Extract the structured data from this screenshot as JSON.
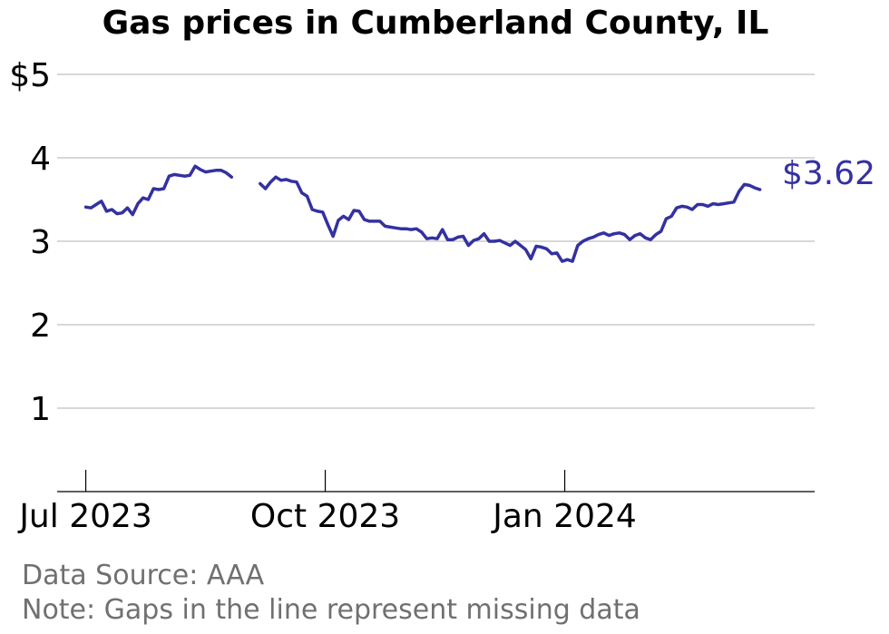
{
  "chart_data": {
    "type": "line",
    "title": "Gas prices in Cumberland County, IL",
    "xlabel": "",
    "ylabel": "",
    "ylim": [
      0,
      5
    ],
    "xlim": [
      "2023-06-20",
      "2024-04-06"
    ],
    "yticks": [
      {
        "value": 1,
        "label": "1"
      },
      {
        "value": 2,
        "label": "2"
      },
      {
        "value": 3,
        "label": "3"
      },
      {
        "value": 4,
        "label": "4"
      },
      {
        "value": 5,
        "label": "$5"
      }
    ],
    "xticks": [
      {
        "date": "2023-07-01",
        "label": "Jul 2023"
      },
      {
        "date": "2023-10-01",
        "label": "Oct 2023"
      },
      {
        "date": "2024-01-01",
        "label": "Jan 2024"
      }
    ],
    "grid": true,
    "color": "#3431a0",
    "end_label": "$3.62",
    "series": [
      {
        "segments": [
          [
            [
              "2023-07-01",
              3.41
            ],
            [
              "2023-07-03",
              3.4
            ],
            [
              "2023-07-05",
              3.44
            ],
            [
              "2023-07-07",
              3.48
            ],
            [
              "2023-07-09",
              3.36
            ],
            [
              "2023-07-11",
              3.38
            ],
            [
              "2023-07-13",
              3.33
            ],
            [
              "2023-07-15",
              3.34
            ],
            [
              "2023-07-17",
              3.4
            ],
            [
              "2023-07-19",
              3.32
            ],
            [
              "2023-07-21",
              3.45
            ],
            [
              "2023-07-23",
              3.52
            ],
            [
              "2023-07-25",
              3.5
            ],
            [
              "2023-07-27",
              3.63
            ],
            [
              "2023-07-29",
              3.62
            ],
            [
              "2023-07-31",
              3.63
            ],
            [
              "2023-08-02",
              3.78
            ],
            [
              "2023-08-04",
              3.8
            ],
            [
              "2023-08-06",
              3.79
            ],
            [
              "2023-08-08",
              3.78
            ],
            [
              "2023-08-10",
              3.79
            ],
            [
              "2023-08-12",
              3.9
            ],
            [
              "2023-08-14",
              3.86
            ],
            [
              "2023-08-16",
              3.83
            ],
            [
              "2023-08-18",
              3.84
            ],
            [
              "2023-08-20",
              3.85
            ],
            [
              "2023-08-22",
              3.85
            ],
            [
              "2023-08-24",
              3.82
            ],
            [
              "2023-08-26",
              3.77
            ]
          ],
          [
            [
              "2023-09-06",
              3.69
            ],
            [
              "2023-09-08",
              3.63
            ],
            [
              "2023-09-10",
              3.71
            ],
            [
              "2023-09-12",
              3.77
            ],
            [
              "2023-09-14",
              3.73
            ],
            [
              "2023-09-16",
              3.74
            ],
            [
              "2023-09-18",
              3.72
            ],
            [
              "2023-09-20",
              3.71
            ],
            [
              "2023-09-22",
              3.58
            ],
            [
              "2023-09-24",
              3.54
            ],
            [
              "2023-09-26",
              3.38
            ],
            [
              "2023-09-28",
              3.36
            ],
            [
              "2023-09-30",
              3.35
            ],
            [
              "2023-10-02",
              3.2
            ],
            [
              "2023-10-04",
              3.06
            ],
            [
              "2023-10-06",
              3.25
            ],
            [
              "2023-10-08",
              3.3
            ],
            [
              "2023-10-10",
              3.26
            ],
            [
              "2023-10-12",
              3.37
            ],
            [
              "2023-10-14",
              3.36
            ],
            [
              "2023-10-16",
              3.26
            ],
            [
              "2023-10-18",
              3.24
            ],
            [
              "2023-10-20",
              3.24
            ],
            [
              "2023-10-22",
              3.24
            ],
            [
              "2023-10-24",
              3.18
            ],
            [
              "2023-10-26",
              3.17
            ],
            [
              "2023-10-28",
              3.16
            ],
            [
              "2023-10-30",
              3.15
            ],
            [
              "2023-11-01",
              3.15
            ],
            [
              "2023-11-03",
              3.14
            ],
            [
              "2023-11-05",
              3.15
            ],
            [
              "2023-11-07",
              3.11
            ],
            [
              "2023-11-09",
              3.03
            ],
            [
              "2023-11-11",
              3.04
            ],
            [
              "2023-11-13",
              3.03
            ],
            [
              "2023-11-15",
              3.14
            ],
            [
              "2023-11-17",
              3.02
            ],
            [
              "2023-11-19",
              3.02
            ],
            [
              "2023-11-21",
              3.05
            ],
            [
              "2023-11-23",
              3.06
            ],
            [
              "2023-11-25",
              2.95
            ],
            [
              "2023-11-27",
              3.01
            ],
            [
              "2023-11-29",
              3.03
            ],
            [
              "2023-12-01",
              3.09
            ],
            [
              "2023-12-03",
              3.0
            ],
            [
              "2023-12-05",
              3.0
            ],
            [
              "2023-12-07",
              3.01
            ],
            [
              "2023-12-09",
              2.98
            ],
            [
              "2023-12-11",
              2.95
            ],
            [
              "2023-12-13",
              3.0
            ],
            [
              "2023-12-15",
              2.95
            ],
            [
              "2023-12-17",
              2.9
            ],
            [
              "2023-12-19",
              2.79
            ],
            [
              "2023-12-21",
              2.94
            ],
            [
              "2023-12-23",
              2.93
            ],
            [
              "2023-12-25",
              2.91
            ],
            [
              "2023-12-27",
              2.85
            ],
            [
              "2023-12-29",
              2.86
            ],
            [
              "2023-12-31",
              2.76
            ],
            [
              "2024-01-02",
              2.78
            ],
            [
              "2024-01-04",
              2.76
            ],
            [
              "2024-01-06",
              2.95
            ],
            [
              "2024-01-08",
              3.0
            ],
            [
              "2024-01-10",
              3.03
            ],
            [
              "2024-01-12",
              3.05
            ],
            [
              "2024-01-14",
              3.08
            ],
            [
              "2024-01-16",
              3.1
            ],
            [
              "2024-01-18",
              3.07
            ],
            [
              "2024-01-20",
              3.09
            ],
            [
              "2024-01-22",
              3.1
            ],
            [
              "2024-01-24",
              3.08
            ],
            [
              "2024-01-26",
              3.02
            ],
            [
              "2024-01-28",
              3.07
            ],
            [
              "2024-01-30",
              3.09
            ],
            [
              "2024-02-01",
              3.04
            ],
            [
              "2024-02-03",
              3.02
            ],
            [
              "2024-02-05",
              3.08
            ],
            [
              "2024-02-07",
              3.12
            ],
            [
              "2024-02-09",
              3.27
            ],
            [
              "2024-02-11",
              3.3
            ],
            [
              "2024-02-13",
              3.4
            ],
            [
              "2024-02-15",
              3.42
            ],
            [
              "2024-02-17",
              3.41
            ],
            [
              "2024-02-19",
              3.38
            ],
            [
              "2024-02-21",
              3.44
            ],
            [
              "2024-02-23",
              3.44
            ],
            [
              "2024-02-25",
              3.42
            ],
            [
              "2024-02-27",
              3.45
            ],
            [
              "2024-02-29",
              3.44
            ],
            [
              "2024-03-02",
              3.45
            ],
            [
              "2024-03-04",
              3.46
            ],
            [
              "2024-03-06",
              3.47
            ],
            [
              "2024-03-08",
              3.6
            ],
            [
              "2024-03-10",
              3.68
            ],
            [
              "2024-03-12",
              3.67
            ],
            [
              "2024-03-14",
              3.64
            ],
            [
              "2024-03-16",
              3.62
            ]
          ]
        ]
      }
    ]
  },
  "footer": {
    "source": "Data Source: AAA",
    "note": "Note: Gaps in the line represent missing data"
  }
}
